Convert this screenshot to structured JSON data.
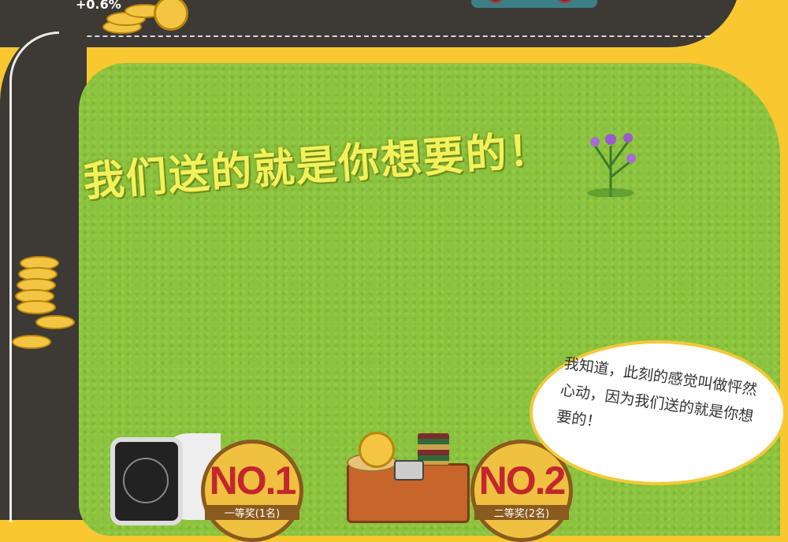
{
  "headline": "我们送的就是你想要的！",
  "rate": "+0.6%",
  "speech": "我知道，此刻的感觉叫做怦然心动，因为我们送的就是你想要的！",
  "prizes": [
    {
      "no": "NO.1",
      "label": "一等奖(1名)"
    },
    {
      "no": "NO.2",
      "label": "二等奖(2名)"
    }
  ],
  "colors": {
    "background": "#f9c72f",
    "grass": "#8bc43c",
    "road": "#3d3934",
    "title": "#f3f15a"
  }
}
